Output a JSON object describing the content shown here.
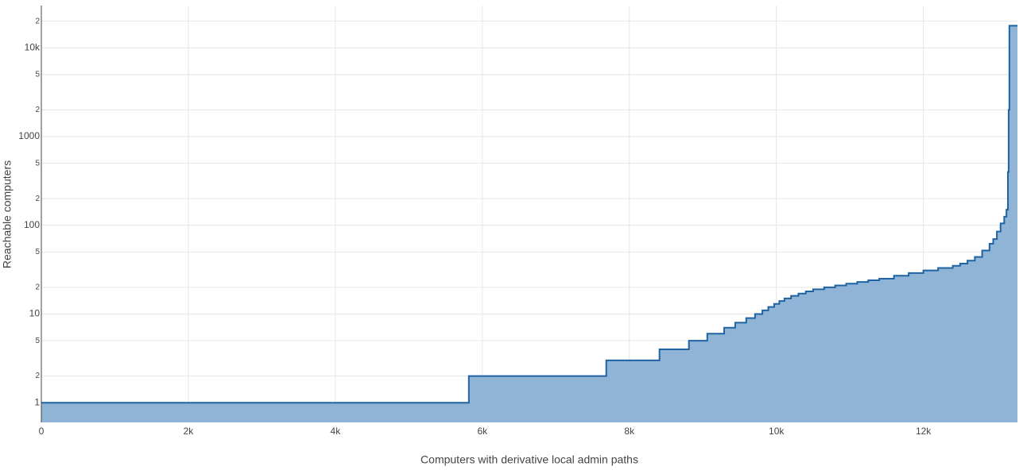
{
  "chart_data": {
    "type": "step-area",
    "x_label": "Computers with derivative local admin paths",
    "y_label": "Reachable computers",
    "x": [
      0,
      5816,
      7686,
      8410,
      8810,
      9060,
      9290,
      9440,
      9590,
      9710,
      9810,
      9890,
      9970,
      10040,
      10110,
      10200,
      10300,
      10400,
      10500,
      10650,
      10800,
      10950,
      11100,
      11250,
      11400,
      11600,
      11800,
      12000,
      12200,
      12400,
      12500,
      12600,
      12700,
      12800,
      12900,
      12950,
      13000,
      13050,
      13100,
      13130,
      13150,
      13160,
      13170,
      13280
    ],
    "values": [
      1,
      2,
      3,
      4,
      5,
      6,
      7,
      8,
      9,
      10,
      11,
      12,
      13,
      14,
      15,
      16,
      17,
      18,
      19,
      20,
      21,
      22,
      23,
      24,
      25,
      27,
      29,
      31,
      33,
      35,
      37,
      40,
      44,
      52,
      62,
      70,
      85,
      105,
      125,
      150,
      400,
      2000,
      17800,
      17800
    ],
    "color": "#1f63a3",
    "fill_color": "#8fb4d6",
    "xlim": [
      0,
      13280
    ],
    "xticks": [
      0,
      {
        "value": 2000,
        "label": "2k"
      },
      {
        "value": 4000,
        "label": "4k"
      },
      {
        "value": 6000,
        "label": "6k"
      },
      {
        "value": 8000,
        "label": "8k"
      },
      {
        "value": 10000,
        "label": "10k"
      },
      {
        "value": 12000,
        "label": "12k"
      }
    ],
    "ylim": [
      0.6,
      30000
    ],
    "y_log": true,
    "yticks": [
      1,
      2,
      5,
      10,
      {
        "value": 20,
        "label": "2"
      },
      {
        "value": 50,
        "label": "5"
      },
      100,
      {
        "value": 200,
        "label": "2"
      },
      {
        "value": 500,
        "label": "5"
      },
      1000,
      {
        "value": 2000,
        "label": "2"
      },
      {
        "value": 5000,
        "label": "5"
      },
      {
        "value": 10000,
        "label": "10k"
      },
      {
        "value": 20000,
        "label": "2"
      }
    ],
    "grid": true
  }
}
